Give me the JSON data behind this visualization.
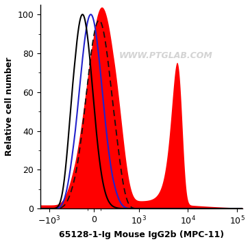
{
  "title": "",
  "xlabel": "65128-1-Ig Mouse IgG2b (MPC-11)",
  "ylabel": "Relative cell number",
  "xlim_low": -1500,
  "xlim_high": 130000,
  "ylim": [
    0,
    105
  ],
  "yticks": [
    0,
    20,
    40,
    60,
    80,
    100
  ],
  "linthresh": 300,
  "linscale": 0.35,
  "watermark": "WWW.PTGLAB.COM",
  "background_color": "#ffffff",
  "red_fill_color": "#ff0000",
  "blue_line_color": "#2222cc",
  "black_line_color": "#000000",
  "dashed_line_color": "#111111",
  "black_peak_mu": -180,
  "black_peak_sigma": 160,
  "black_peak_amp": 100,
  "blue_peak_mu": -50,
  "blue_peak_sigma": 180,
  "blue_peak_amp": 100,
  "dashed_peak_mu": 80,
  "dashed_peak_sigma": 200,
  "dashed_peak_amp": 97,
  "red_peak1_mu": 120,
  "red_peak1_sigma": 240,
  "red_peak1_amp": 100,
  "red_peak2_mu": 6000,
  "red_peak2_sigma": 1500,
  "red_peak2_amp": 73,
  "red_base_amp": 4
}
